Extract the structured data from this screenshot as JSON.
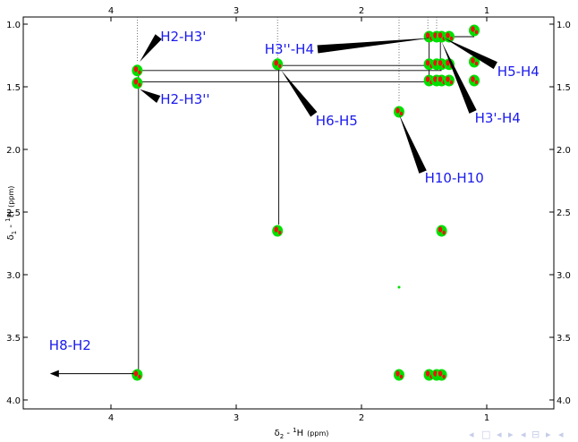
{
  "chart_data": {
    "type": "scatter",
    "title": "",
    "xlabel": "δ2 - 1H  (ppm)",
    "ylabel": "δ1 - 1H  (ppm)",
    "xlabel_parts": {
      "delta": "δ",
      "sub": "2",
      "sep": " - ",
      "sup": "1",
      "nucleus": "H",
      "unit": "(ppm)"
    },
    "ylabel_parts": {
      "delta": "δ",
      "sub": "1",
      "sep": " - ",
      "sup": "1",
      "nucleus": "H",
      "unit": "(ppm)"
    },
    "xlim": [
      4.5,
      0.6
    ],
    "ylim": [
      1.0,
      4.0
    ],
    "x_reversed": true,
    "y_reversed": true,
    "x_ticks": [
      {
        "value": 4,
        "label": "4"
      },
      {
        "value": 3,
        "label": "3"
      },
      {
        "value": 2,
        "label": "2"
      },
      {
        "value": 1,
        "label": "1"
      }
    ],
    "y_ticks": [
      {
        "value": 1.0,
        "label": "1.0"
      },
      {
        "value": 1.5,
        "label": "1.5"
      },
      {
        "value": 2.0,
        "label": "2.0"
      },
      {
        "value": 2.5,
        "label": "2.5"
      },
      {
        "value": 3.0,
        "label": "3.0"
      },
      {
        "value": 3.5,
        "label": "3.5"
      },
      {
        "value": 4.0,
        "label": "4.0"
      }
    ],
    "grid": false,
    "colors": {
      "positive": "#00e000",
      "negative": "#ee1111",
      "annotation": "#1a1aee",
      "line": "#000000"
    },
    "peaks": [
      {
        "x": 3.79,
        "y": 1.37
      },
      {
        "x": 3.79,
        "y": 1.47
      },
      {
        "x": 2.67,
        "y": 1.32
      },
      {
        "x": 2.67,
        "y": 2.65
      },
      {
        "x": 1.7,
        "y": 1.7
      },
      {
        "x": 1.46,
        "y": 1.1
      },
      {
        "x": 1.4,
        "y": 1.1
      },
      {
        "x": 1.36,
        "y": 1.1
      },
      {
        "x": 1.3,
        "y": 1.1
      },
      {
        "x": 1.46,
        "y": 1.32
      },
      {
        "x": 1.4,
        "y": 1.32
      },
      {
        "x": 1.36,
        "y": 1.32
      },
      {
        "x": 1.3,
        "y": 1.32
      },
      {
        "x": 1.46,
        "y": 1.45
      },
      {
        "x": 1.4,
        "y": 1.45
      },
      {
        "x": 1.36,
        "y": 1.45
      },
      {
        "x": 1.3,
        "y": 1.45
      },
      {
        "x": 1.1,
        "y": 1.05
      },
      {
        "x": 1.1,
        "y": 1.3
      },
      {
        "x": 1.1,
        "y": 1.45
      },
      {
        "x": 1.36,
        "y": 2.65
      },
      {
        "x": 3.79,
        "y": 3.8
      },
      {
        "x": 1.7,
        "y": 3.8
      },
      {
        "x": 1.46,
        "y": 3.8
      },
      {
        "x": 1.4,
        "y": 3.8
      },
      {
        "x": 1.36,
        "y": 3.8
      }
    ],
    "small_signals": [
      {
        "x": 1.7,
        "y": 3.1
      }
    ],
    "guide_lines": [
      {
        "x": 3.79,
        "y_from": 1.0,
        "y_to": 1.3
      },
      {
        "x": 2.67,
        "y_from": 1.0,
        "y_to": 1.28
      },
      {
        "x": 1.7,
        "y_from": 1.0,
        "y_to": 1.62
      },
      {
        "x": 1.47,
        "y_from": 1.0,
        "y_to": 1.05
      },
      {
        "x": 1.4,
        "y_from": 1.0,
        "y_to": 1.05
      }
    ],
    "connector_lines": [
      {
        "from": [
          3.79,
          1.37
        ],
        "to": [
          1.36,
          1.37
        ]
      },
      {
        "from": [
          3.79,
          1.46
        ],
        "to": [
          1.46,
          1.46
        ]
      },
      {
        "from": [
          2.67,
          1.33
        ],
        "to": [
          1.36,
          1.33
        ]
      },
      {
        "from": [
          1.46,
          1.1
        ],
        "to": [
          1.1,
          1.1
        ]
      },
      {
        "from": [
          3.78,
          1.37
        ],
        "to": [
          3.78,
          3.78
        ]
      },
      {
        "from": [
          2.66,
          1.33
        ],
        "to": [
          2.66,
          2.6
        ]
      },
      {
        "from": [
          1.46,
          1.1
        ],
        "to": [
          1.46,
          1.45
        ]
      },
      {
        "from": [
          1.37,
          1.1
        ],
        "to": [
          1.37,
          1.37
        ]
      }
    ],
    "annotations": [
      {
        "text": "H2-H3'",
        "label_at": [
          3.62,
          1.1
        ],
        "tip_at": [
          3.77,
          1.3
        ]
      },
      {
        "text": "H2-H3''",
        "label_at": [
          3.62,
          1.6
        ],
        "tip_at": [
          3.77,
          1.52
        ]
      },
      {
        "text": "H6-H5",
        "label_at": [
          2.38,
          1.72
        ],
        "tip_at": [
          2.64,
          1.37
        ]
      },
      {
        "text": "H3''-H4",
        "label_at": [
          2.35,
          1.2
        ],
        "tip_at": [
          1.44,
          1.11
        ]
      },
      {
        "text": "H5-H4",
        "label_at": [
          0.93,
          1.33
        ],
        "tip_at": [
          1.34,
          1.11
        ]
      },
      {
        "text": "H3'-H4",
        "label_at": [
          1.11,
          1.7
        ],
        "tip_at": [
          1.36,
          1.14
        ]
      },
      {
        "text": "H10-H10",
        "label_at": [
          1.51,
          2.18
        ],
        "tip_at": [
          1.7,
          1.72
        ]
      },
      {
        "text": "H8-H2",
        "label_at": [
          4.48,
          3.67
        ],
        "tip_at": [
          4.48,
          3.79
        ],
        "arrow_from": [
          3.79,
          3.79
        ],
        "style": "arrow"
      }
    ]
  },
  "nav": {
    "icons": [
      "first-page-icon",
      "prev-frame-icon",
      "prev-section-icon",
      "prev-subsection-icon",
      "next-icon"
    ]
  }
}
